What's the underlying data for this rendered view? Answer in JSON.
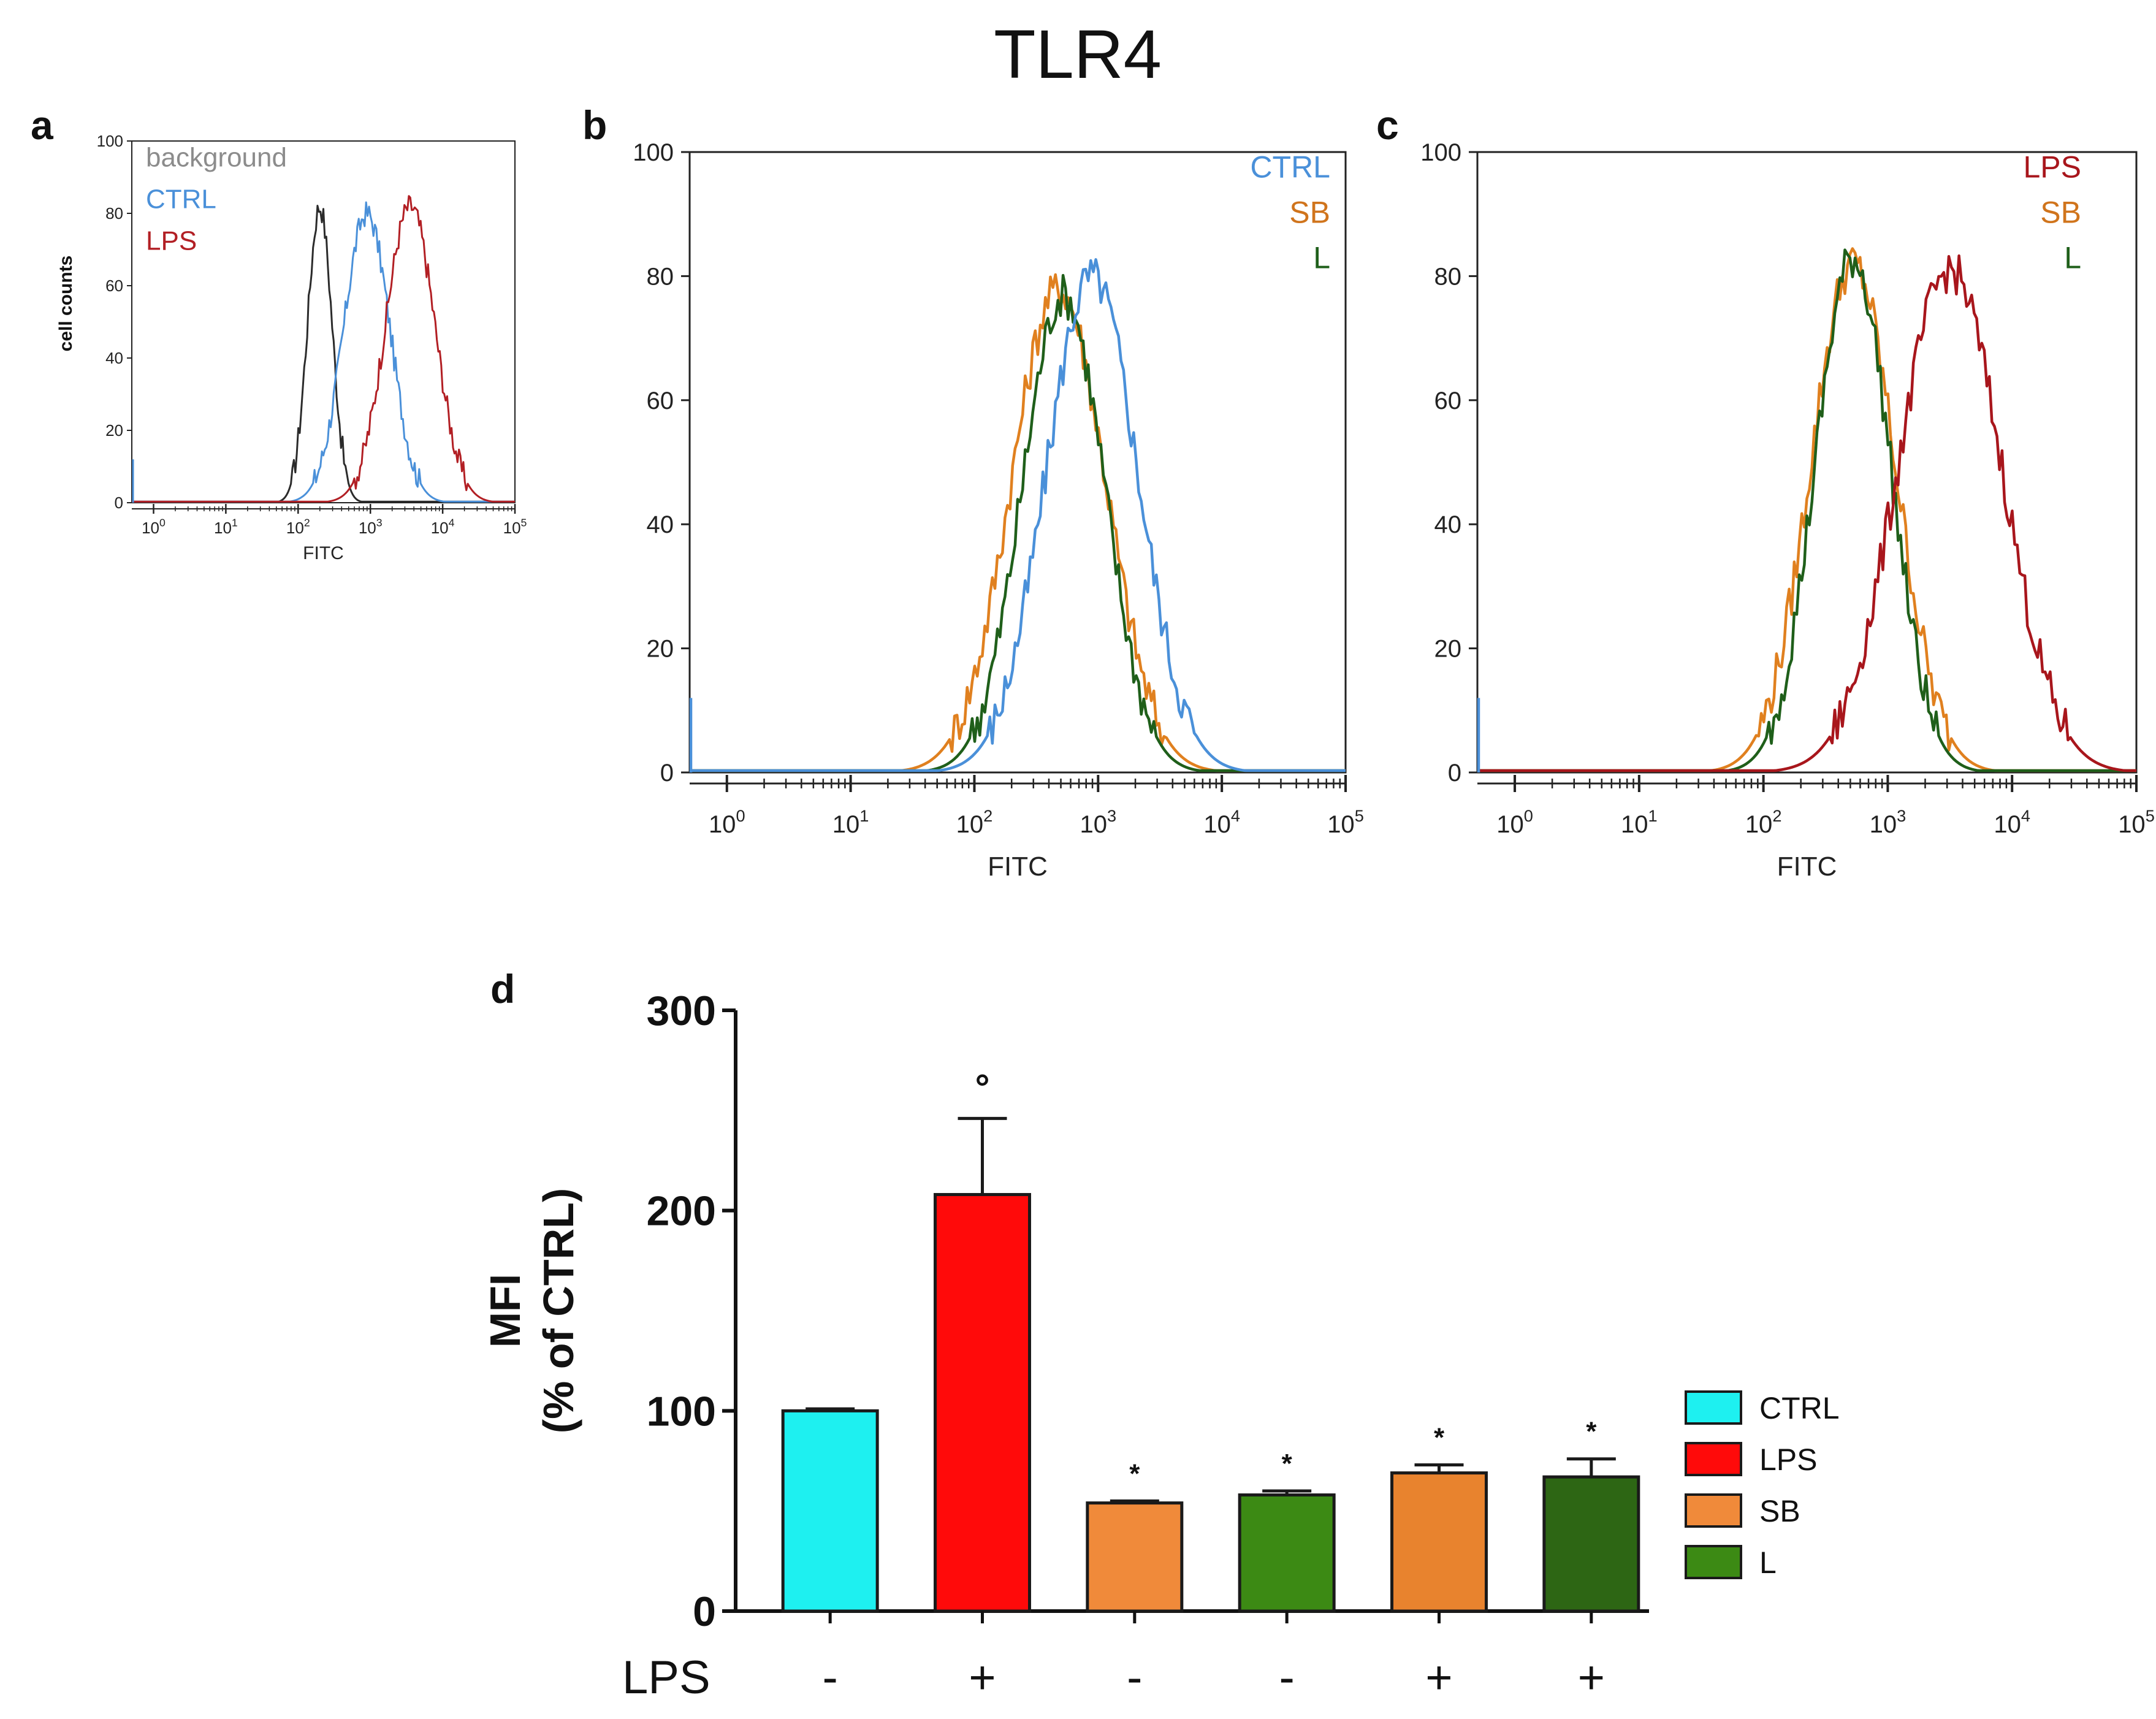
{
  "figure_title": "TLR4",
  "panel_labels": [
    "a",
    "b",
    "c",
    "d"
  ],
  "chart_data": [
    {
      "panel": "a",
      "type": "line",
      "xscale": "log",
      "xlabel": "FITC",
      "ylabel": "cell counts",
      "xlim": [
        0.5,
        100000
      ],
      "ylim": [
        0,
        100
      ],
      "yticks": [
        "0",
        "20",
        "40",
        "60",
        "80",
        "100"
      ],
      "xticks": [
        {
          "base": "10",
          "exp": "0"
        },
        {
          "base": "10",
          "exp": "1"
        },
        {
          "base": "10",
          "exp": "2"
        },
        {
          "base": "10",
          "exp": "3"
        },
        {
          "base": "10",
          "exp": "4"
        },
        {
          "base": "10",
          "exp": "5"
        }
      ],
      "legend": [
        {
          "name": "background",
          "color": "#8c8c8c"
        },
        {
          "name": "CTRL",
          "color": "#4a90d9"
        },
        {
          "name": "LPS",
          "color": "#b21f24"
        }
      ],
      "series": [
        {
          "name": "background",
          "color": "#2b2b2b",
          "center_log": 2.3,
          "sigma": 0.17,
          "peak": 82
        },
        {
          "name": "CTRL",
          "color": "#4a90d9",
          "center_log": 2.95,
          "sigma": 0.32,
          "peak": 80
        },
        {
          "name": "LPS",
          "color": "#b21f24",
          "center_log": 3.55,
          "sigma": 0.34,
          "peak": 82
        }
      ]
    },
    {
      "panel": "b",
      "type": "line",
      "xscale": "log",
      "xlabel": "FITC",
      "xlim": [
        0.5,
        100000
      ],
      "ylim": [
        0,
        100
      ],
      "yticks": [
        "0",
        "20",
        "40",
        "60",
        "80",
        "100"
      ],
      "xticks": [
        {
          "base": "10",
          "exp": "0"
        },
        {
          "base": "10",
          "exp": "1"
        },
        {
          "base": "10",
          "exp": "2"
        },
        {
          "base": "10",
          "exp": "3"
        },
        {
          "base": "10",
          "exp": "4"
        },
        {
          "base": "10",
          "exp": "5"
        }
      ],
      "legend": [
        {
          "name": "CTRL",
          "color": "#4a90d9"
        },
        {
          "name": "SB",
          "color": "#d0741c"
        },
        {
          "name": "L",
          "color": "#1f5f1a"
        }
      ],
      "series": [
        {
          "name": "SB",
          "color": "#e0801f",
          "center_log": 2.68,
          "sigma": 0.38,
          "peak": 78
        },
        {
          "name": "L",
          "color": "#1f5f1a",
          "center_log": 2.72,
          "sigma": 0.33,
          "peak": 77
        },
        {
          "name": "CTRL",
          "color": "#4a90d9",
          "center_log": 2.95,
          "sigma": 0.37,
          "peak": 80
        }
      ]
    },
    {
      "panel": "c",
      "type": "line",
      "xscale": "log",
      "xlabel": "FITC",
      "xlim": [
        0.5,
        100000
      ],
      "ylim": [
        0,
        100
      ],
      "yticks": [
        "0",
        "20",
        "40",
        "60",
        "80",
        "100"
      ],
      "xticks": [
        {
          "base": "10",
          "exp": "0"
        },
        {
          "base": "10",
          "exp": "1"
        },
        {
          "base": "10",
          "exp": "2"
        },
        {
          "base": "10",
          "exp": "3"
        },
        {
          "base": "10",
          "exp": "4"
        },
        {
          "base": "10",
          "exp": "5"
        }
      ],
      "legend": [
        {
          "name": "LPS",
          "color": "#a8161c"
        },
        {
          "name": "SB",
          "color": "#d0741c"
        },
        {
          "name": "L",
          "color": "#1f5f1a"
        }
      ],
      "series": [
        {
          "name": "SB",
          "color": "#e0801f",
          "center_log": 2.72,
          "sigma": 0.34,
          "peak": 82
        },
        {
          "name": "L",
          "color": "#1f5f1a",
          "center_log": 2.72,
          "sigma": 0.3,
          "peak": 83
        },
        {
          "name": "LPS",
          "color": "#a8161c",
          "center_log": 3.5,
          "sigma": 0.42,
          "peak": 81
        }
      ]
    },
    {
      "panel": "d",
      "type": "bar",
      "ylabel_line1": "MFI",
      "ylabel_line2": "(% of CTRL)",
      "ylim": [
        0,
        300
      ],
      "yticks": [
        "0",
        "100",
        "200",
        "300"
      ],
      "row_label": "LPS",
      "bars": [
        {
          "group": "CTRL",
          "value": 100,
          "error": 1,
          "lps": "-",
          "mark": "",
          "color": "#1ef0f0"
        },
        {
          "group": "LPS",
          "value": 208,
          "error": 38,
          "lps": "+",
          "mark": "°",
          "color": "#ff0a0a"
        },
        {
          "group": "SB",
          "value": 54,
          "error": 1,
          "lps": "-",
          "mark": "*",
          "color": "#f08a3a"
        },
        {
          "group": "L",
          "value": 58,
          "error": 2,
          "lps": "-",
          "mark": "*",
          "color": "#3c8a14"
        },
        {
          "group": "SB",
          "value": 69,
          "error": 4,
          "lps": "+",
          "mark": "*",
          "color": "#e8832e"
        },
        {
          "group": "L",
          "value": 67,
          "error": 9,
          "lps": "+",
          "mark": "*",
          "color": "#2d6614"
        }
      ],
      "legend": [
        {
          "name": "CTRL",
          "color": "#1ef0f0"
        },
        {
          "name": "LPS",
          "color": "#ff0a0a"
        },
        {
          "name": "SB",
          "color": "#f08a3a"
        },
        {
          "name": "L",
          "color": "#3c8a14"
        }
      ]
    }
  ]
}
